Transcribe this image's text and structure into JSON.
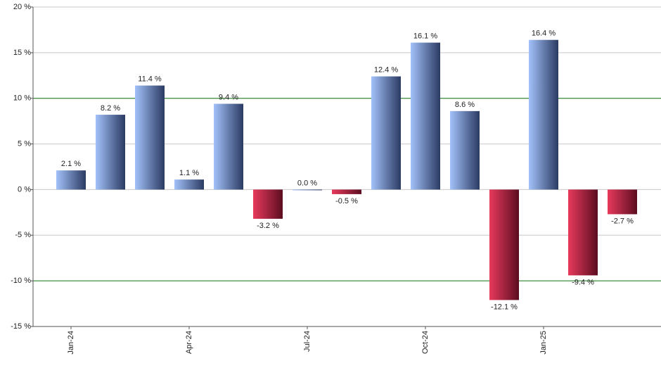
{
  "chart_data": {
    "type": "bar",
    "categories": [
      "Jan-24",
      null,
      null,
      "Apr-24",
      null,
      null,
      "Jul-24",
      null,
      null,
      "Oct-24",
      null,
      null,
      "Jan-25",
      null,
      null
    ],
    "values": [
      2.1,
      8.2,
      11.4,
      1.1,
      9.4,
      -3.2,
      0.0,
      -0.5,
      12.4,
      16.1,
      8.6,
      -12.1,
      16.4,
      -9.4,
      -2.7
    ],
    "value_labels": [
      "2.1 %",
      "8.2 %",
      "11.4 %",
      "1.1 %",
      "9.4 %",
      "-3.2 %",
      "0.0 %",
      "-0.5 %",
      "12.4 %",
      "16.1 %",
      "8.6 %",
      "-12.1 %",
      "16.4 %",
      "-9.4 %",
      "-2.7 %"
    ],
    "color": "#a3c2fa",
    "negative_color": "#e83a5c",
    "ylim": [
      -15,
      20
    ],
    "yticks": [
      {
        "value": -15,
        "label": "-15 %"
      },
      {
        "value": -10,
        "label": "-10 %"
      },
      {
        "value": -5,
        "label": "-5 %"
      },
      {
        "value": 0,
        "label": "0 %"
      },
      {
        "value": 5,
        "label": "5 %"
      },
      {
        "value": 10,
        "label": "10 %"
      },
      {
        "value": 15,
        "label": "15 %"
      },
      {
        "value": 20,
        "label": "20 %"
      }
    ],
    "grid": true,
    "reference_lines": [
      10,
      -10
    ],
    "reference_color": "#1a7a1a"
  }
}
